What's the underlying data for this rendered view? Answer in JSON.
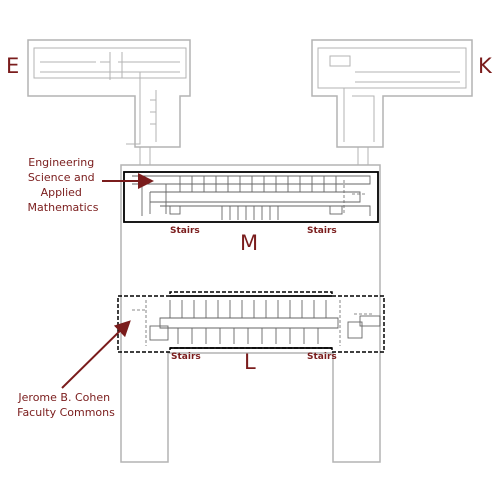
{
  "buildings": {
    "e": "E",
    "k": "K",
    "m": "M",
    "l": "L"
  },
  "stairs": {
    "m_left": "Stairs",
    "m_right": "Stairs",
    "l_left": "Stairs",
    "l_right": "Stairs"
  },
  "callouts": {
    "engineering": [
      "Engineering",
      "Science and",
      "Applied",
      "Mathematics"
    ],
    "faculty": [
      "Jerome B. Cohen",
      "Faculty Commons"
    ]
  },
  "colors": {
    "accent": "#7a1c1c",
    "outline": "#b3b3b3",
    "highlight": "#000000"
  }
}
